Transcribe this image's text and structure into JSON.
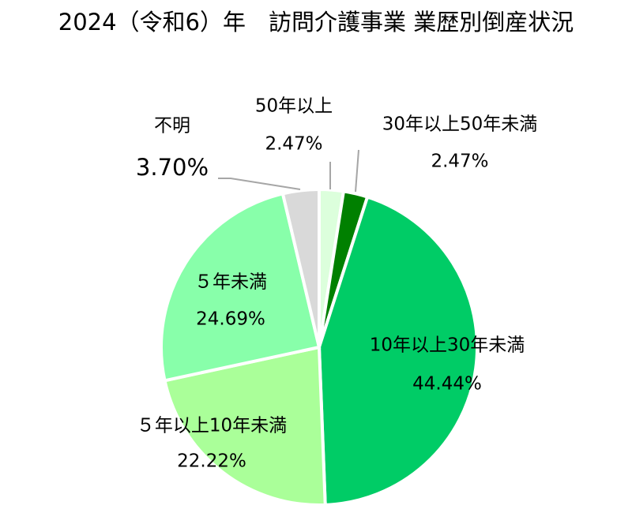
{
  "chart_data": {
    "type": "pie",
    "title": "2024（令和6）年　訪問介護事業 業歴別倒産状況",
    "categories": [
      "50年以上",
      "30年以上50年未満",
      "10年以上30年未満",
      "５年以上10年未満",
      "５年未満",
      "不明"
    ],
    "values": [
      2.47,
      2.47,
      44.44,
      22.22,
      24.69,
      3.7
    ],
    "value_labels": [
      "2.47%",
      "2.47%",
      "44.44%",
      "22.22%",
      "24.69%",
      "3.70%"
    ],
    "colors": [
      "#dcffdc",
      "#008000",
      "#00cc66",
      "#aaff99",
      "#88ffaa",
      "#d9d9d9"
    ]
  }
}
